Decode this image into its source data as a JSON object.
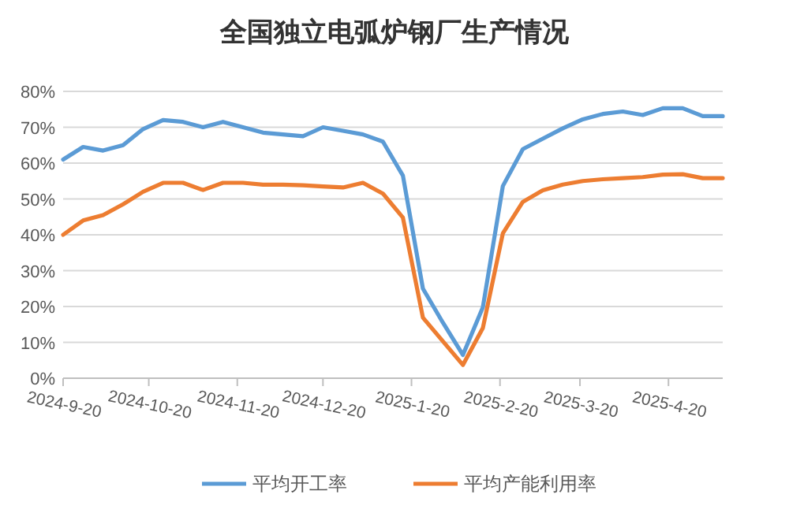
{
  "chart_data": {
    "type": "line",
    "title": "全国独立电弧炉钢厂生产情况",
    "x": [
      "2024-09-20",
      "2024-09-27",
      "2024-10-04",
      "2024-10-11",
      "2024-10-18",
      "2024-10-25",
      "2024-11-01",
      "2024-11-08",
      "2024-11-15",
      "2024-11-22",
      "2024-11-29",
      "2024-12-06",
      "2024-12-13",
      "2024-12-20",
      "2024-12-27",
      "2025-01-03",
      "2025-01-10",
      "2025-01-17",
      "2025-01-24",
      "2025-01-31",
      "2025-02-07",
      "2025-02-14",
      "2025-02-21",
      "2025-02-28",
      "2025-03-07",
      "2025-03-14",
      "2025-03-21",
      "2025-03-28",
      "2025-04-04",
      "2025-04-11",
      "2025-04-18",
      "2025-04-25",
      "2025-05-02",
      "2025-05-09"
    ],
    "series": [
      {
        "name": "平均开工率",
        "color": "#5b9bd5",
        "values": [
          61,
          64.5,
          63.5,
          65,
          69.5,
          72,
          71.5,
          70,
          71.5,
          70,
          68.5,
          68,
          67.5,
          70,
          69,
          68,
          66,
          56.5,
          25,
          15.5,
          6.5,
          19.8,
          53.6,
          63.9,
          66.8,
          69.7,
          72.2,
          73.7,
          74.4,
          73.4,
          75.3,
          75.3,
          73.1,
          73.1
        ]
      },
      {
        "name": "平均产能利用率",
        "color": "#ed7d31",
        "values": [
          40,
          44,
          45.5,
          48.5,
          52,
          54.5,
          54.5,
          52.5,
          54.5,
          54.5,
          54,
          54,
          53.8,
          53.5,
          53.2,
          54.5,
          51.5,
          44.8,
          16.9,
          10.3,
          3.7,
          14,
          40.4,
          49.2,
          52.4,
          54,
          55,
          55.5,
          55.8,
          56.1,
          56.8,
          56.9,
          55.8,
          55.8
        ]
      }
    ],
    "xlim": [
      "2024-09-20",
      "2025-05-09"
    ],
    "xticks": [
      {
        "value": "2024-09-20",
        "label": "2024-9-20"
      },
      {
        "value": "2024-10-20",
        "label": "2024-10-20"
      },
      {
        "value": "2024-11-20",
        "label": "2024-11-20"
      },
      {
        "value": "2024-12-20",
        "label": "2024-12-20"
      },
      {
        "value": "2025-01-20",
        "label": "2025-1-20"
      },
      {
        "value": "2025-02-20",
        "label": "2025-2-20"
      },
      {
        "value": "2025-03-20",
        "label": "2025-3-20"
      },
      {
        "value": "2025-04-20",
        "label": "2025-4-20"
      }
    ],
    "ylim": [
      0,
      80
    ],
    "yticks": [
      {
        "value": 0,
        "label": "0%"
      },
      {
        "value": 10,
        "label": "10%"
      },
      {
        "value": 20,
        "label": "20%"
      },
      {
        "value": 30,
        "label": "30%"
      },
      {
        "value": 40,
        "label": "40%"
      },
      {
        "value": 50,
        "label": "50%"
      },
      {
        "value": 60,
        "label": "60%"
      },
      {
        "value": 70,
        "label": "70%"
      },
      {
        "value": 80,
        "label": "80%"
      }
    ],
    "grid": "y",
    "legend": "bottom",
    "marker": "none",
    "line_style": "solid"
  }
}
